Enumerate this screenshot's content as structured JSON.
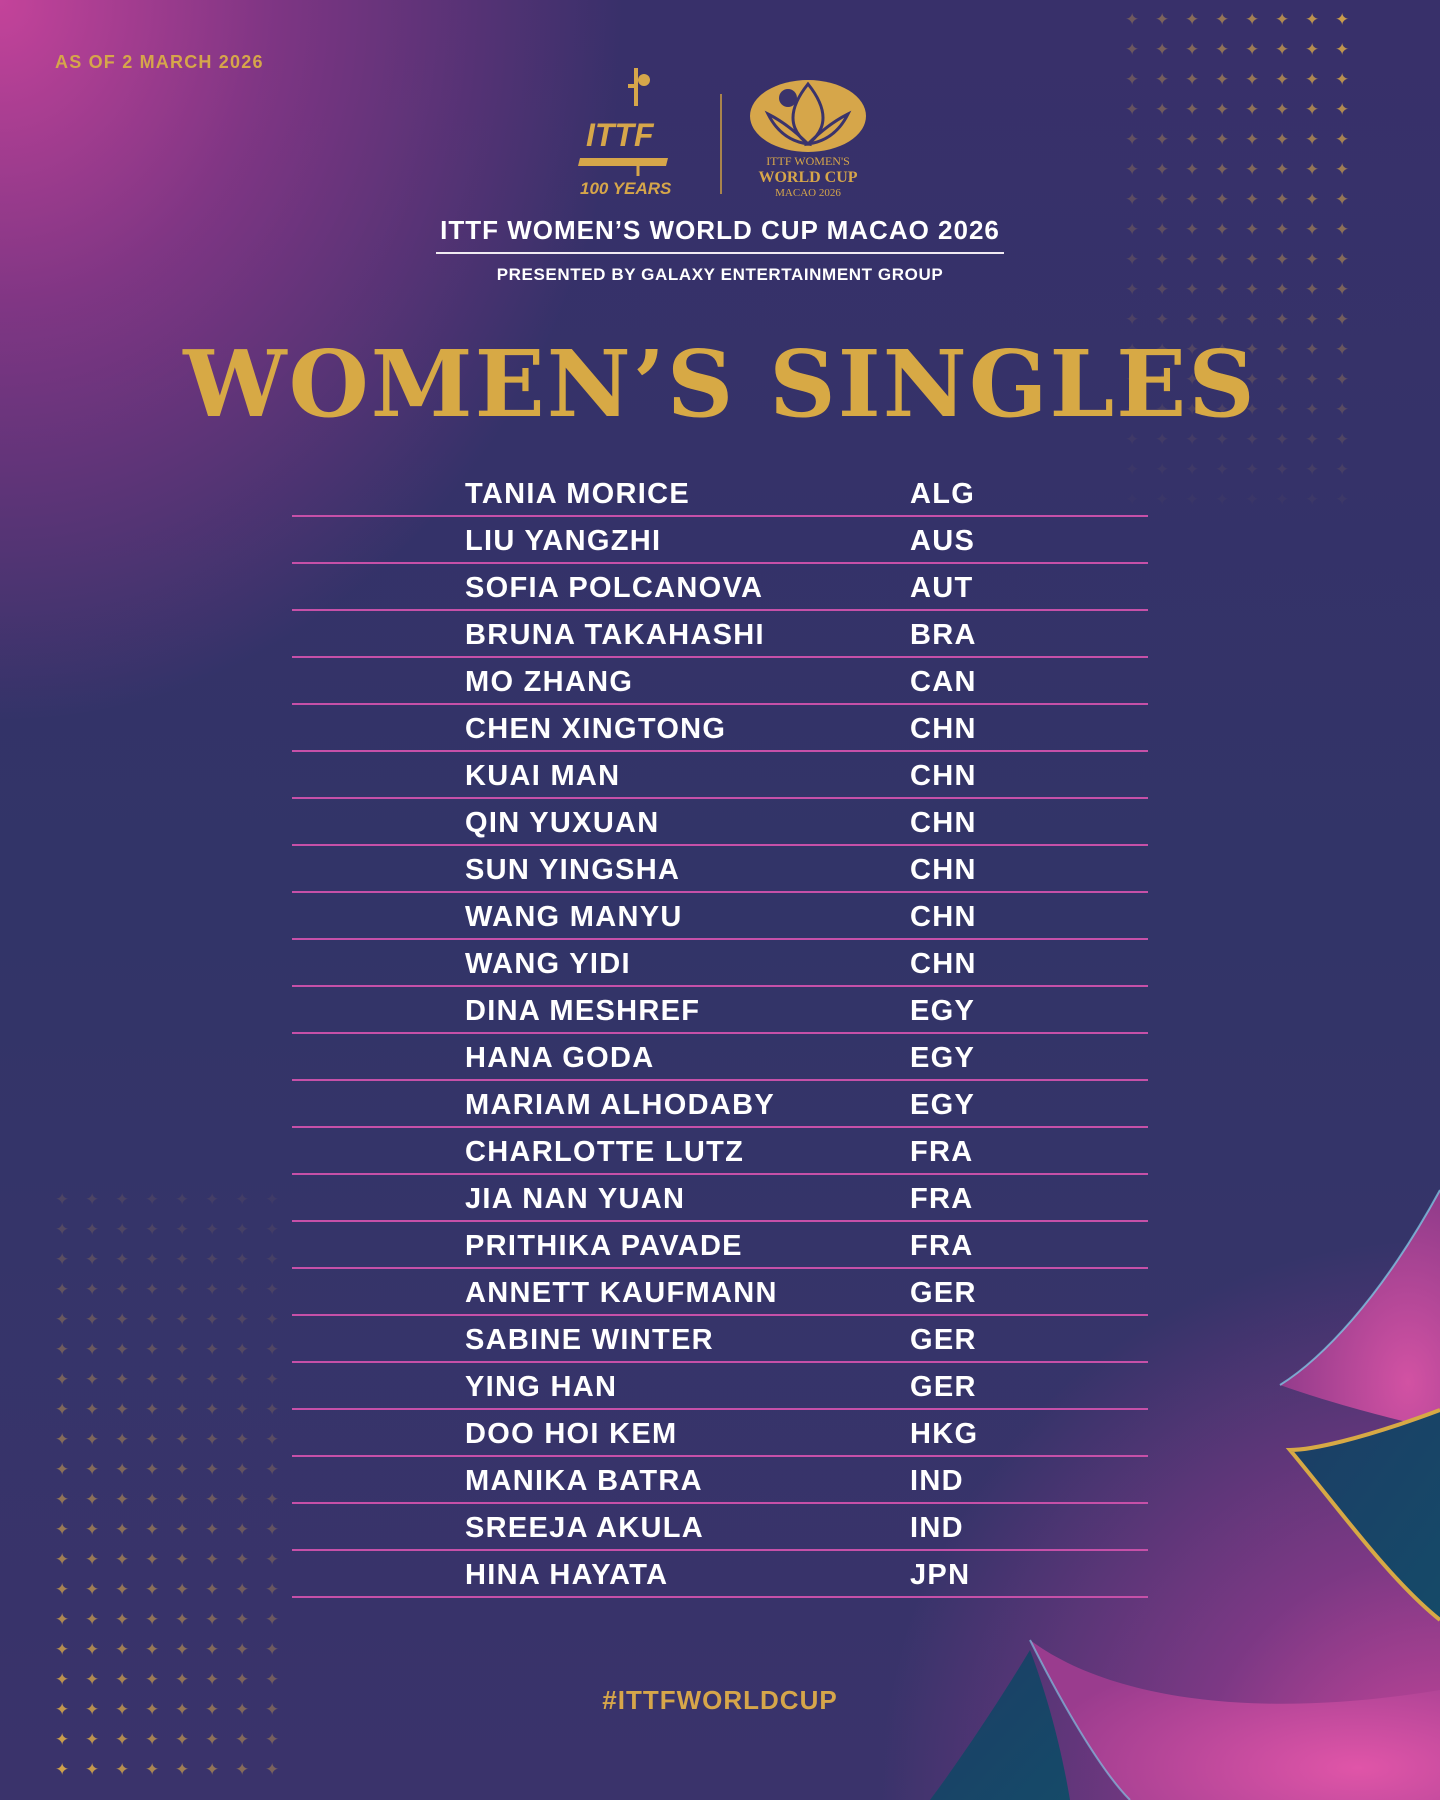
{
  "as_of": "AS OF 2 MARCH 2026",
  "logos": {
    "ittf_text": "ITTF",
    "ittf_years": "100 YEARS",
    "wwc_line1": "ITTF WOMEN'S",
    "wwc_line2": "WORLD CUP",
    "wwc_line3": "MACAO 2026"
  },
  "event_title": "ITTF WOMEN’S WORLD CUP MACAO 2026",
  "presented_by": "PRESENTED BY GALAXY ENTERTAINMENT GROUP",
  "main_title": "WOMEN’S SINGLES",
  "players": [
    {
      "name": "TANIA MORICE",
      "country": "ALG"
    },
    {
      "name": "LIU YANGZHI",
      "country": "AUS"
    },
    {
      "name": "SOFIA POLCANOVA",
      "country": "AUT"
    },
    {
      "name": "BRUNA TAKAHASHI",
      "country": "BRA"
    },
    {
      "name": "MO ZHANG",
      "country": "CAN"
    },
    {
      "name": "CHEN XINGTONG",
      "country": "CHN"
    },
    {
      "name": "KUAI MAN",
      "country": "CHN"
    },
    {
      "name": "QIN YUXUAN",
      "country": "CHN"
    },
    {
      "name": "SUN YINGSHA",
      "country": "CHN"
    },
    {
      "name": "WANG MANYU",
      "country": "CHN"
    },
    {
      "name": "WANG YIDI",
      "country": "CHN"
    },
    {
      "name": "DINA MESHREF",
      "country": "EGY"
    },
    {
      "name": "HANA GODA",
      "country": "EGY"
    },
    {
      "name": "MARIAM ALHODABY",
      "country": "EGY"
    },
    {
      "name": "CHARLOTTE LUTZ",
      "country": "FRA"
    },
    {
      "name": "JIA NAN YUAN",
      "country": "FRA"
    },
    {
      "name": "PRITHIKA PAVADE",
      "country": "FRA"
    },
    {
      "name": "ANNETT KAUFMANN",
      "country": "GER"
    },
    {
      "name": "SABINE WINTER",
      "country": "GER"
    },
    {
      "name": "YING HAN",
      "country": "GER"
    },
    {
      "name": "DOO HOI KEM",
      "country": "HKG"
    },
    {
      "name": "MANIKA BATRA",
      "country": "IND"
    },
    {
      "name": "SREEJA AKULA",
      "country": "IND"
    },
    {
      "name": "HINA HAYATA",
      "country": "JPN"
    }
  ],
  "hashtag": "#ITTFWORLDCUP",
  "colors": {
    "gold": "#d6a64a",
    "divider": "#c650a8",
    "background": "#343468",
    "pink": "#d0479c",
    "teal": "#1f4f6e"
  }
}
